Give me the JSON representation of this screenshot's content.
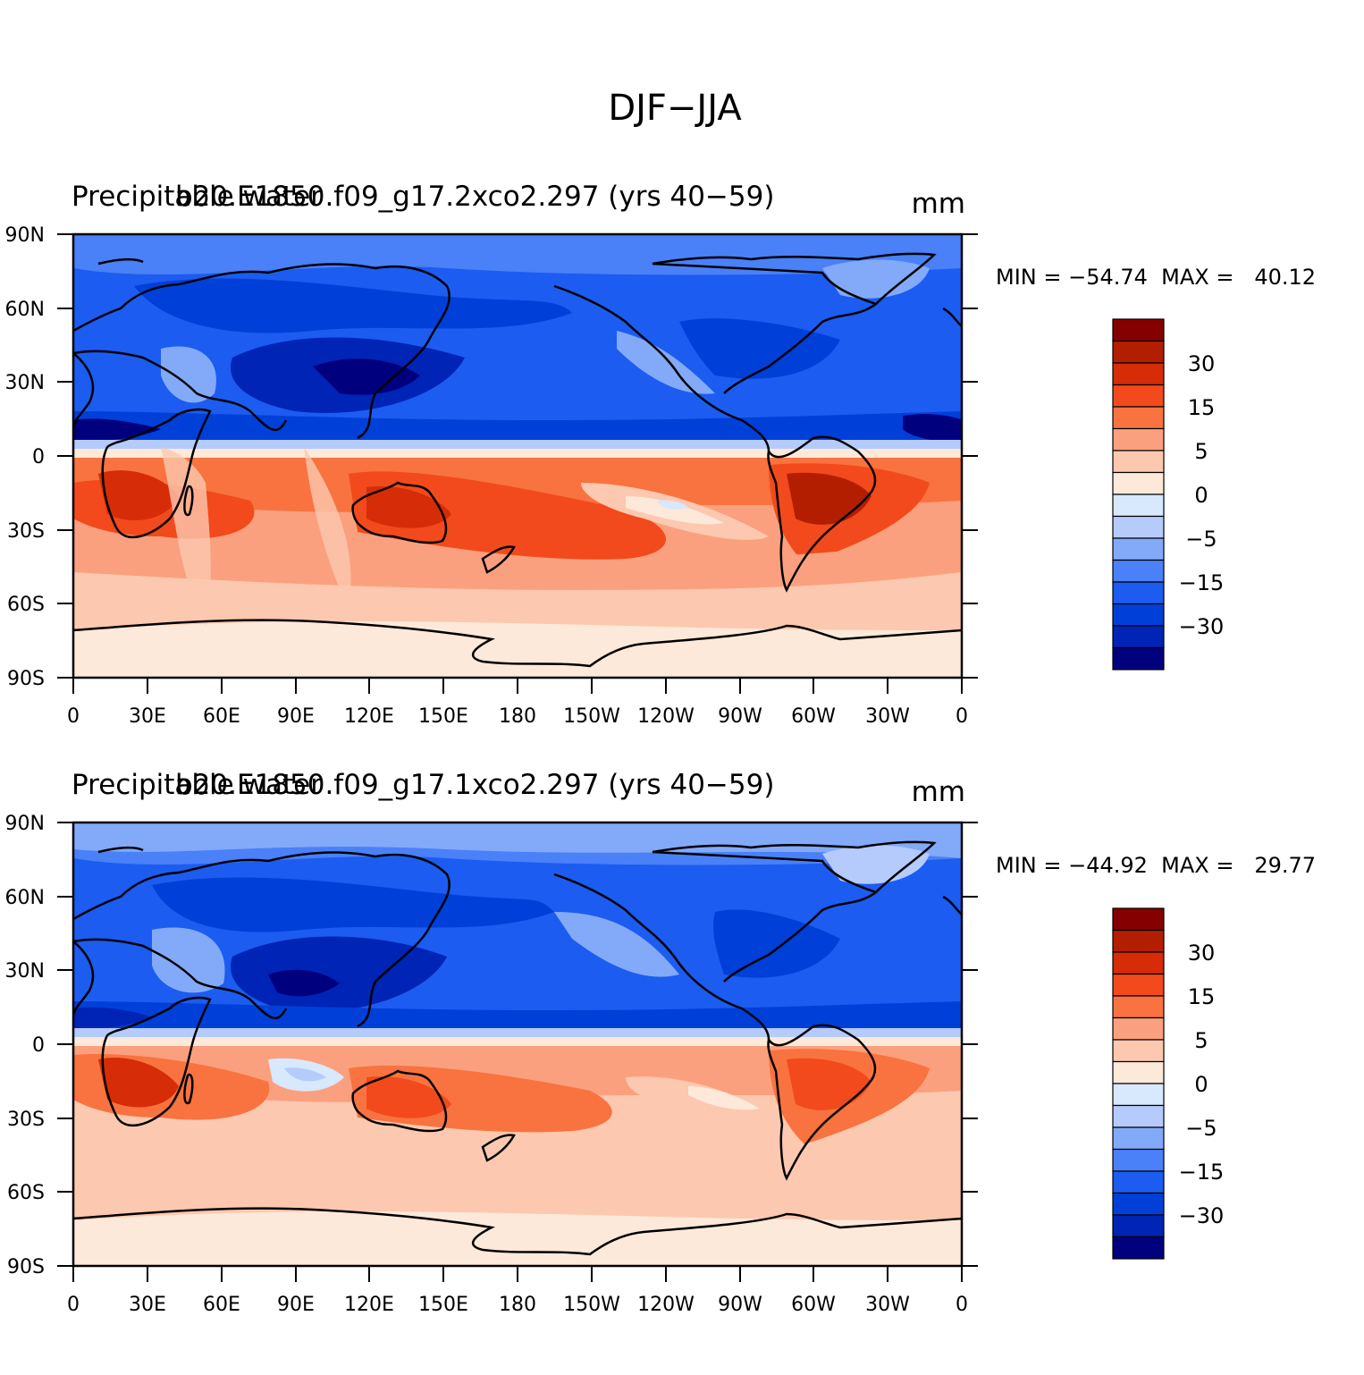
{
  "title": "DJF−JJA",
  "colors": [
    "#00007f",
    "#0024b5",
    "#0040d8",
    "#1c5cf0",
    "#4a80f8",
    "#82aaf9",
    "#b4cbfc",
    "#d8e8fd",
    "#fde9d9",
    "#fcc8b0",
    "#fba07e",
    "#f8733f",
    "#f24a1c",
    "#d62c08",
    "#b41e00",
    "#850000"
  ],
  "colorbar_labels": [
    "30",
    "15",
    "5",
    "0",
    "−5",
    "−15",
    "−30"
  ],
  "lat_labels": [
    "90N",
    "60N",
    "30N",
    "0",
    "30S",
    "60S",
    "90S"
  ],
  "lon_labels": [
    "0",
    "30E",
    "60E",
    "90E",
    "120E",
    "150E",
    "180",
    "150W",
    "120W",
    "90W",
    "60W",
    "30W",
    "0"
  ],
  "panels": [
    {
      "variable": "Precipitable water",
      "case": "b20.E1850.f09_g17.2xco2.297 (yrs 40−59)",
      "units": "mm",
      "stats": "MIN = −54.74  MAX =   40.12",
      "min": -54.74,
      "max": 40.12
    },
    {
      "variable": "Precipitable water",
      "case": "b20.E1850.f09_g17.1xco2.297 (yrs 40−59)",
      "units": "mm",
      "stats": "MIN = −44.92  MAX =   29.77",
      "min": -44.92,
      "max": 29.77
    }
  ]
}
